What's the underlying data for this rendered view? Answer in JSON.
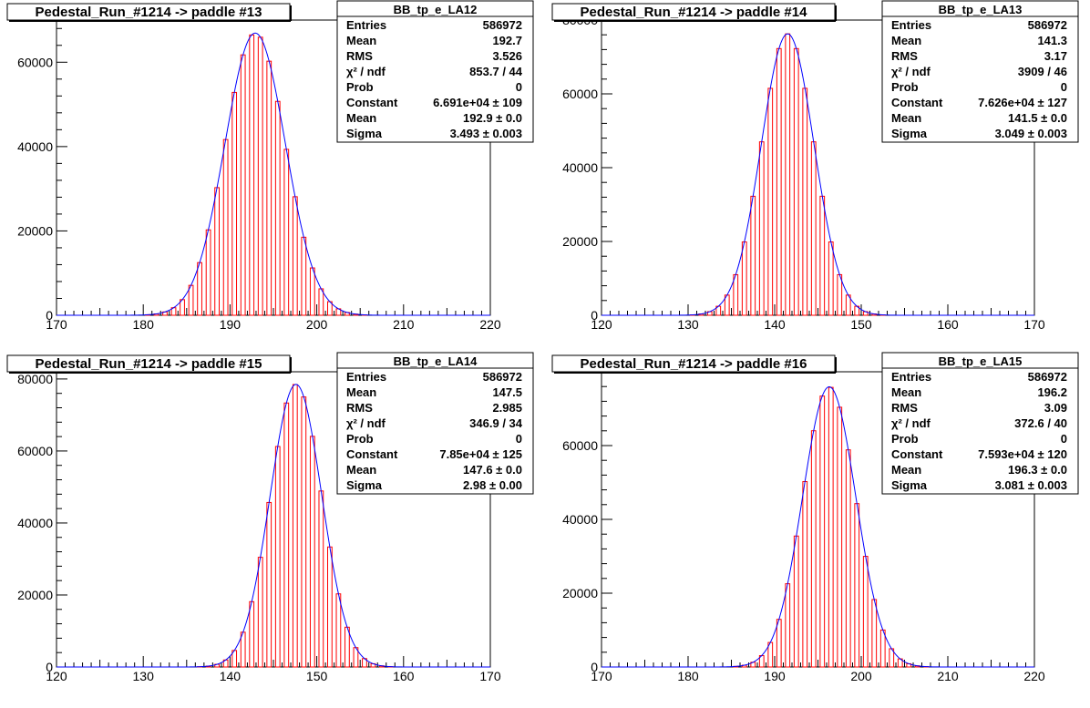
{
  "chart_data": [
    {
      "type": "bar",
      "title": "Pedestal_Run_#1214 -> paddle #13",
      "stats": {
        "name": "BB_tp_e_LA12",
        "rows": [
          {
            "label": "Entries",
            "value": "586972"
          },
          {
            "label": "Mean",
            "value": "192.7"
          },
          {
            "label": "RMS",
            "value": "3.526"
          },
          {
            "label": "χ² / ndf",
            "value": "853.7 / 44"
          },
          {
            "label": "Prob",
            "value": "0"
          },
          {
            "label": "Constant",
            "value": "6.691e+04 ± 109"
          },
          {
            "label": "Mean",
            "value": "192.9 ± 0.0"
          },
          {
            "label": "Sigma",
            "value": "3.493 ± 0.003"
          }
        ]
      },
      "xlim": [
        170,
        220
      ],
      "ylim": [
        0,
        70000
      ],
      "xticks": [
        170,
        180,
        190,
        200,
        210,
        220
      ],
      "yticks": [
        0,
        20000,
        40000,
        60000
      ],
      "fit": {
        "constant": 66910,
        "mean": 192.9,
        "sigma": 3.493
      },
      "bar_color": "#ff0000",
      "fit_color": "#0000ff"
    },
    {
      "type": "bar",
      "title": "Pedestal_Run_#1214 -> paddle #14",
      "stats": {
        "name": "BB_tp_e_LA13",
        "rows": [
          {
            "label": "Entries",
            "value": "586972"
          },
          {
            "label": "Mean",
            "value": "141.3"
          },
          {
            "label": "RMS",
            "value": "3.17"
          },
          {
            "label": "χ² / ndf",
            "value": "3909 / 46"
          },
          {
            "label": "Prob",
            "value": "0"
          },
          {
            "label": "Constant",
            "value": "7.626e+04 ± 127"
          },
          {
            "label": "Mean",
            "value": "141.5 ± 0.0"
          },
          {
            "label": "Sigma",
            "value": "3.049 ± 0.003"
          }
        ]
      },
      "xlim": [
        120,
        170
      ],
      "ylim": [
        0,
        80000
      ],
      "xticks": [
        120,
        130,
        140,
        150,
        160,
        170
      ],
      "yticks": [
        0,
        20000,
        40000,
        60000,
        80000
      ],
      "fit": {
        "constant": 76260,
        "mean": 141.5,
        "sigma": 3.049
      },
      "bar_color": "#ff0000",
      "fit_color": "#0000ff"
    },
    {
      "type": "bar",
      "title": "Pedestal_Run_#1214 -> paddle #15",
      "stats": {
        "name": "BB_tp_e_LA14",
        "rows": [
          {
            "label": "Entries",
            "value": "586972"
          },
          {
            "label": "Mean",
            "value": "147.5"
          },
          {
            "label": "RMS",
            "value": "2.985"
          },
          {
            "label": "χ² / ndf",
            "value": "346.9 / 34"
          },
          {
            "label": "Prob",
            "value": "0"
          },
          {
            "label": "Constant",
            "value": "7.85e+04 ± 125"
          },
          {
            "label": "Mean",
            "value": "147.6 ± 0.0"
          },
          {
            "label": "Sigma",
            "value": "2.98 ± 0.00"
          }
        ]
      },
      "xlim": [
        120,
        170
      ],
      "ylim": [
        0,
        82000
      ],
      "xticks": [
        120,
        130,
        140,
        150,
        160,
        170
      ],
      "yticks": [
        0,
        20000,
        40000,
        60000,
        80000
      ],
      "fit": {
        "constant": 78500,
        "mean": 147.6,
        "sigma": 2.98
      },
      "bar_color": "#ff0000",
      "fit_color": "#0000ff"
    },
    {
      "type": "bar",
      "title": "Pedestal_Run_#1214 -> paddle #16",
      "stats": {
        "name": "BB_tp_e_LA15",
        "rows": [
          {
            "label": "Entries",
            "value": "586972"
          },
          {
            "label": "Mean",
            "value": "196.2"
          },
          {
            "label": "RMS",
            "value": "3.09"
          },
          {
            "label": "χ² / ndf",
            "value": "372.6 / 40"
          },
          {
            "label": "Prob",
            "value": "0"
          },
          {
            "label": "Constant",
            "value": "7.593e+04 ± 120"
          },
          {
            "label": "Mean",
            "value": "196.3 ± 0.0"
          },
          {
            "label": "Sigma",
            "value": "3.081 ± 0.003"
          }
        ]
      },
      "xlim": [
        170,
        220
      ],
      "ylim": [
        0,
        80000
      ],
      "xticks": [
        170,
        180,
        190,
        200,
        210,
        220
      ],
      "yticks": [
        0,
        20000,
        40000,
        60000
      ],
      "fit": {
        "constant": 75930,
        "mean": 196.3,
        "sigma": 3.081
      },
      "bar_color": "#ff0000",
      "fit_color": "#0000ff"
    }
  ]
}
